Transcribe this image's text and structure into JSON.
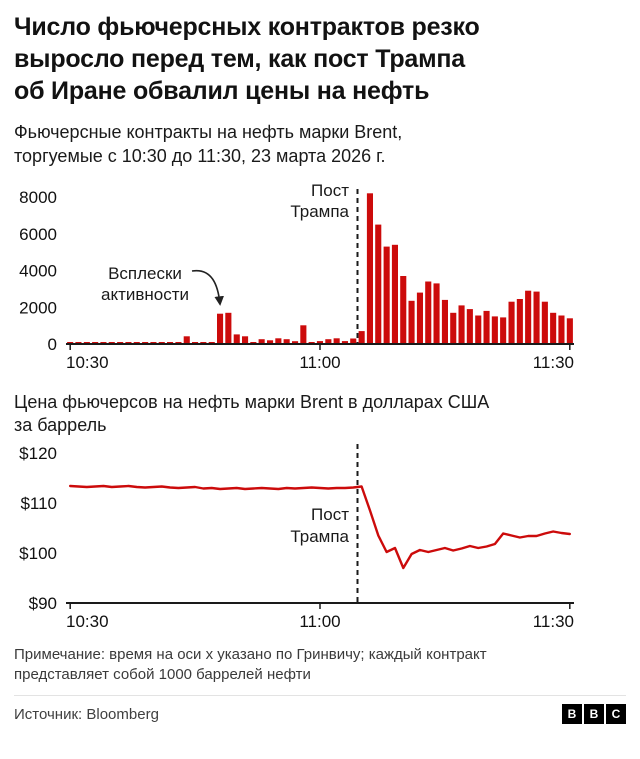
{
  "header": {
    "title": "Число фьючерсных контрактов резко выросло перед тем, как пост Трампа об Иране обвалил цены на нефть",
    "title_lines": [
      "Число фьючерсных контрактов резко",
      "выросло перед тем, как пост Трампа",
      "об Иране обвалил цены на нефть"
    ]
  },
  "chart1": {
    "subtitle": "Фьючерсные контракты на нефть марки Brent, торгуемые с 10:30 до 11:30, 23 марта 2026 г.",
    "subtitle_lines": [
      "Фьючерсные контракты на нефть марки Brent,",
      "торгуемые с 10:30 до 11:30, 23 марта 2026 г."
    ],
    "spike_lines": [
      "Всплески",
      "активности"
    ],
    "post_lines": [
      "Пост",
      "Трампа"
    ]
  },
  "chart2": {
    "title": "Цена фьючерсов на нефть марки Brent в долларах США за баррель",
    "title_lines": [
      "Цена фьючерсов на нефть марки Brent в долларах США",
      "за баррель"
    ],
    "post_lines": [
      "Пост",
      "Трампа"
    ]
  },
  "note_lines": [
    "Примечание: время на оси x указано по Гринвичу; каждый контракт",
    "представляет собой 1000 баррелей нефти"
  ],
  "footer": {
    "source": "Источник: Bloomberg",
    "logo_blocks": [
      "B",
      "B",
      "C"
    ]
  },
  "chart_data": [
    {
      "type": "bar",
      "title": "Фьючерсные контракты на нефть марки Brent, торгуемые с 10:30 до 11:30, 23 марта 2026 г.",
      "x_unit": "minutes from 10:30 GMT, one bar per minute",
      "values": [
        60,
        90,
        50,
        100,
        60,
        110,
        70,
        50,
        90,
        60,
        100,
        70,
        60,
        90,
        420,
        80,
        60,
        110,
        1650,
        1700,
        520,
        420,
        90,
        260,
        200,
        310,
        260,
        150,
        1020,
        110,
        160,
        260,
        310,
        160,
        300,
        700,
        8200,
        6500,
        5300,
        5400,
        3700,
        2350,
        2800,
        3400,
        3300,
        2400,
        1700,
        2100,
        1900,
        1550,
        1800,
        1500,
        1450,
        2300,
        2450,
        2900,
        2850,
        2300,
        1700,
        1550,
        1400
      ],
      "ylim": [
        0,
        8000
      ],
      "y_ticks": [
        {
          "value": 0,
          "label": "0"
        },
        {
          "value": 2000,
          "label": "2000"
        },
        {
          "value": 4000,
          "label": "4000"
        },
        {
          "value": 6000,
          "label": "6000"
        },
        {
          "value": 8000,
          "label": "8000"
        }
      ],
      "x_ticks": [
        {
          "minute": 0,
          "label": "10:30"
        },
        {
          "minute": 30,
          "label": "11:00"
        },
        {
          "minute": 60,
          "label": "11:30"
        }
      ],
      "event_line_minute": 35,
      "color": "#cc0b0b",
      "grid": false,
      "annotations": [
        {
          "text": "Всплески активности",
          "target_minute": 18
        },
        {
          "text": "Пост Трампа",
          "target": "event_line"
        }
      ]
    },
    {
      "type": "line",
      "title": "Цена фьючерсов на нефть марки Brent в долларах США за баррель",
      "x_unit": "minutes from 10:30 GMT, one point per minute",
      "values": [
        113.4,
        113.3,
        113.2,
        113.3,
        113.4,
        113.2,
        113.3,
        113.4,
        113.2,
        113.1,
        113.2,
        113.3,
        113.1,
        113.0,
        113.1,
        113.2,
        112.9,
        113.0,
        112.8,
        112.9,
        113.0,
        112.8,
        112.9,
        113.0,
        112.9,
        112.8,
        113.0,
        112.9,
        113.0,
        113.1,
        113.0,
        112.9,
        113.0,
        113.0,
        113.1,
        113.3,
        108.5,
        103.5,
        100.2,
        101.0,
        97.0,
        99.8,
        100.6,
        100.2,
        100.6,
        101.0,
        100.5,
        100.9,
        101.4,
        101.0,
        101.3,
        101.8,
        103.9,
        103.5,
        103.1,
        103.4,
        103.4,
        103.9,
        104.3,
        104.0,
        103.8
      ],
      "ylim": [
        90,
        120
      ],
      "y_ticks": [
        {
          "value": 90,
          "label": "$90"
        },
        {
          "value": 100,
          "label": "$100"
        },
        {
          "value": 110,
          "label": "$110"
        },
        {
          "value": 120,
          "label": "$120"
        }
      ],
      "x_ticks": [
        {
          "minute": 0,
          "label": "10:30"
        },
        {
          "minute": 30,
          "label": "11:00"
        },
        {
          "minute": 60,
          "label": "11:30"
        }
      ],
      "event_line_minute": 35,
      "color": "#cc0b0b",
      "grid": false,
      "annotations": [
        {
          "text": "Пост Трампа",
          "target": "event_line"
        }
      ]
    }
  ]
}
